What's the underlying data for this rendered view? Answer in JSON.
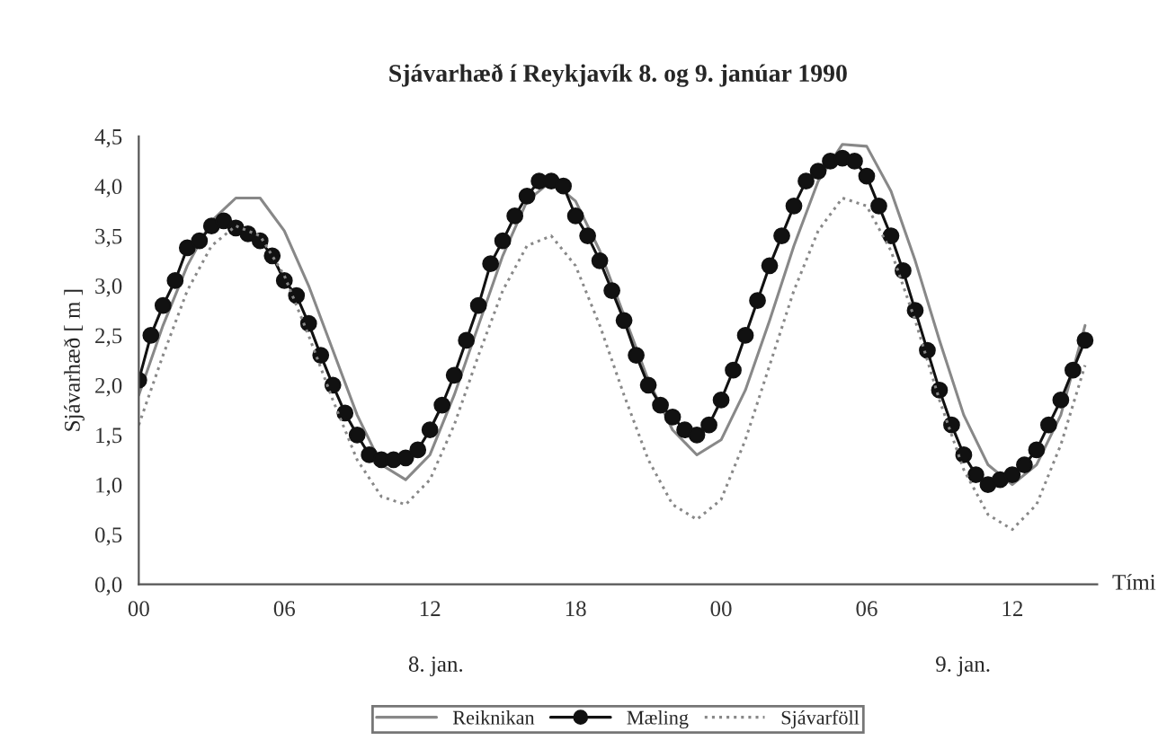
{
  "chart_data": {
    "type": "line",
    "title": "Sjávarhæð í Reykjavík 8. og 9. janúar 1990",
    "xlabel": "Tími",
    "ylabel": "Sjávarhæð [ m ]",
    "annotations": [
      "8. jan.",
      "9. jan."
    ],
    "xlim": [
      0,
      39.5
    ],
    "xticks": [
      {
        "value": 0,
        "label": "00"
      },
      {
        "value": 6,
        "label": "06"
      },
      {
        "value": 12,
        "label": "12"
      },
      {
        "value": 18,
        "label": "18"
      },
      {
        "value": 24,
        "label": "00"
      },
      {
        "value": 30,
        "label": "06"
      },
      {
        "value": 36,
        "label": "12"
      }
    ],
    "ylim": [
      0,
      4.5
    ],
    "yticks": [
      {
        "value": 0,
        "label": "0,0"
      },
      {
        "value": 0.5,
        "label": "0,5"
      },
      {
        "value": 1,
        "label": "1,0"
      },
      {
        "value": 1.5,
        "label": "1,5"
      },
      {
        "value": 2,
        "label": "2,0"
      },
      {
        "value": 2.5,
        "label": "2,5"
      },
      {
        "value": 3,
        "label": "3,0"
      },
      {
        "value": 3.5,
        "label": "3,5"
      },
      {
        "value": 4,
        "label": "4,0"
      },
      {
        "value": 4.5,
        "label": "4,5"
      }
    ],
    "grid": false,
    "legend": "bottom",
    "series": [
      {
        "name": "Reiknikan",
        "color": "#888888",
        "marker": "none",
        "line_style": "solid",
        "x": [
          0,
          1,
          2,
          3,
          4,
          5,
          6,
          7,
          8,
          9,
          10,
          11,
          12,
          13,
          14,
          15,
          16,
          17,
          18,
          19,
          20,
          21,
          22,
          23,
          24,
          25,
          26,
          27,
          28,
          29,
          30,
          31,
          32,
          33,
          34,
          35,
          36,
          37,
          38,
          39
        ],
        "values": [
          1.9,
          2.6,
          3.2,
          3.65,
          3.88,
          3.88,
          3.55,
          3.0,
          2.35,
          1.7,
          1.2,
          1.05,
          1.3,
          1.9,
          2.6,
          3.3,
          3.85,
          4.05,
          3.85,
          3.35,
          2.7,
          2.05,
          1.55,
          1.3,
          1.45,
          1.95,
          2.65,
          3.4,
          4.05,
          4.42,
          4.4,
          3.95,
          3.25,
          2.45,
          1.7,
          1.2,
          1.0,
          1.2,
          1.7,
          2.6
        ]
      },
      {
        "name": "Mæling",
        "color": "#111111",
        "marker": "circle",
        "line_style": "solid",
        "x": [
          0,
          0.5,
          1,
          1.5,
          2,
          2.5,
          3,
          3.5,
          4,
          4.5,
          5,
          5.5,
          6,
          6.5,
          7,
          7.5,
          8,
          8.5,
          9,
          9.5,
          10,
          10.5,
          11,
          11.5,
          12,
          12.5,
          13,
          13.5,
          14,
          14.5,
          15,
          15.5,
          16,
          16.5,
          17,
          17.5,
          18,
          18.5,
          19,
          19.5,
          20,
          20.5,
          21,
          21.5,
          22,
          22.5,
          23,
          23.5,
          24,
          24.5,
          25,
          25.5,
          26,
          26.5,
          27,
          27.5,
          28,
          28.5,
          29,
          29.5,
          30,
          30.5,
          31,
          31.5,
          32,
          32.5,
          33,
          33.5,
          34,
          34.5,
          35,
          35.5,
          36,
          36.5,
          37,
          37.5,
          38,
          38.5,
          39
        ],
        "values": [
          2.05,
          2.5,
          2.8,
          3.05,
          3.38,
          3.45,
          3.6,
          3.65,
          3.58,
          3.52,
          3.45,
          3.3,
          3.05,
          2.9,
          2.62,
          2.3,
          2.0,
          1.72,
          1.5,
          1.3,
          1.25,
          1.25,
          1.27,
          1.35,
          1.55,
          1.8,
          2.1,
          2.45,
          2.8,
          3.22,
          3.45,
          3.7,
          3.9,
          4.05,
          4.05,
          4.0,
          3.7,
          3.5,
          3.25,
          2.95,
          2.65,
          2.3,
          2.0,
          1.8,
          1.68,
          1.55,
          1.5,
          1.6,
          1.85,
          2.15,
          2.5,
          2.85,
          3.2,
          3.5,
          3.8,
          4.05,
          4.15,
          4.25,
          4.28,
          4.25,
          4.1,
          3.8,
          3.5,
          3.15,
          2.75,
          2.35,
          1.95,
          1.6,
          1.3,
          1.1,
          1.0,
          1.05,
          1.1,
          1.2,
          1.35,
          1.6,
          1.85,
          2.15,
          2.45
        ]
      },
      {
        "name": "Sjávarföll",
        "color": "#888888",
        "marker": "none",
        "line_style": "dotted",
        "x": [
          0,
          1,
          2,
          3,
          4,
          5,
          6,
          7,
          8,
          9,
          10,
          11,
          12,
          13,
          14,
          15,
          16,
          17,
          18,
          19,
          20,
          21,
          22,
          23,
          24,
          25,
          26,
          27,
          28,
          29,
          30,
          31,
          32,
          33,
          34,
          35,
          36,
          37,
          38,
          39
        ],
        "values": [
          1.6,
          2.3,
          2.95,
          3.4,
          3.6,
          3.5,
          3.1,
          2.5,
          1.85,
          1.25,
          0.88,
          0.8,
          1.05,
          1.6,
          2.3,
          2.95,
          3.4,
          3.5,
          3.2,
          2.6,
          1.9,
          1.25,
          0.8,
          0.65,
          0.85,
          1.45,
          2.2,
          2.95,
          3.55,
          3.88,
          3.8,
          3.35,
          2.65,
          1.85,
          1.15,
          0.7,
          0.55,
          0.8,
          1.4,
          2.2
        ]
      }
    ]
  }
}
